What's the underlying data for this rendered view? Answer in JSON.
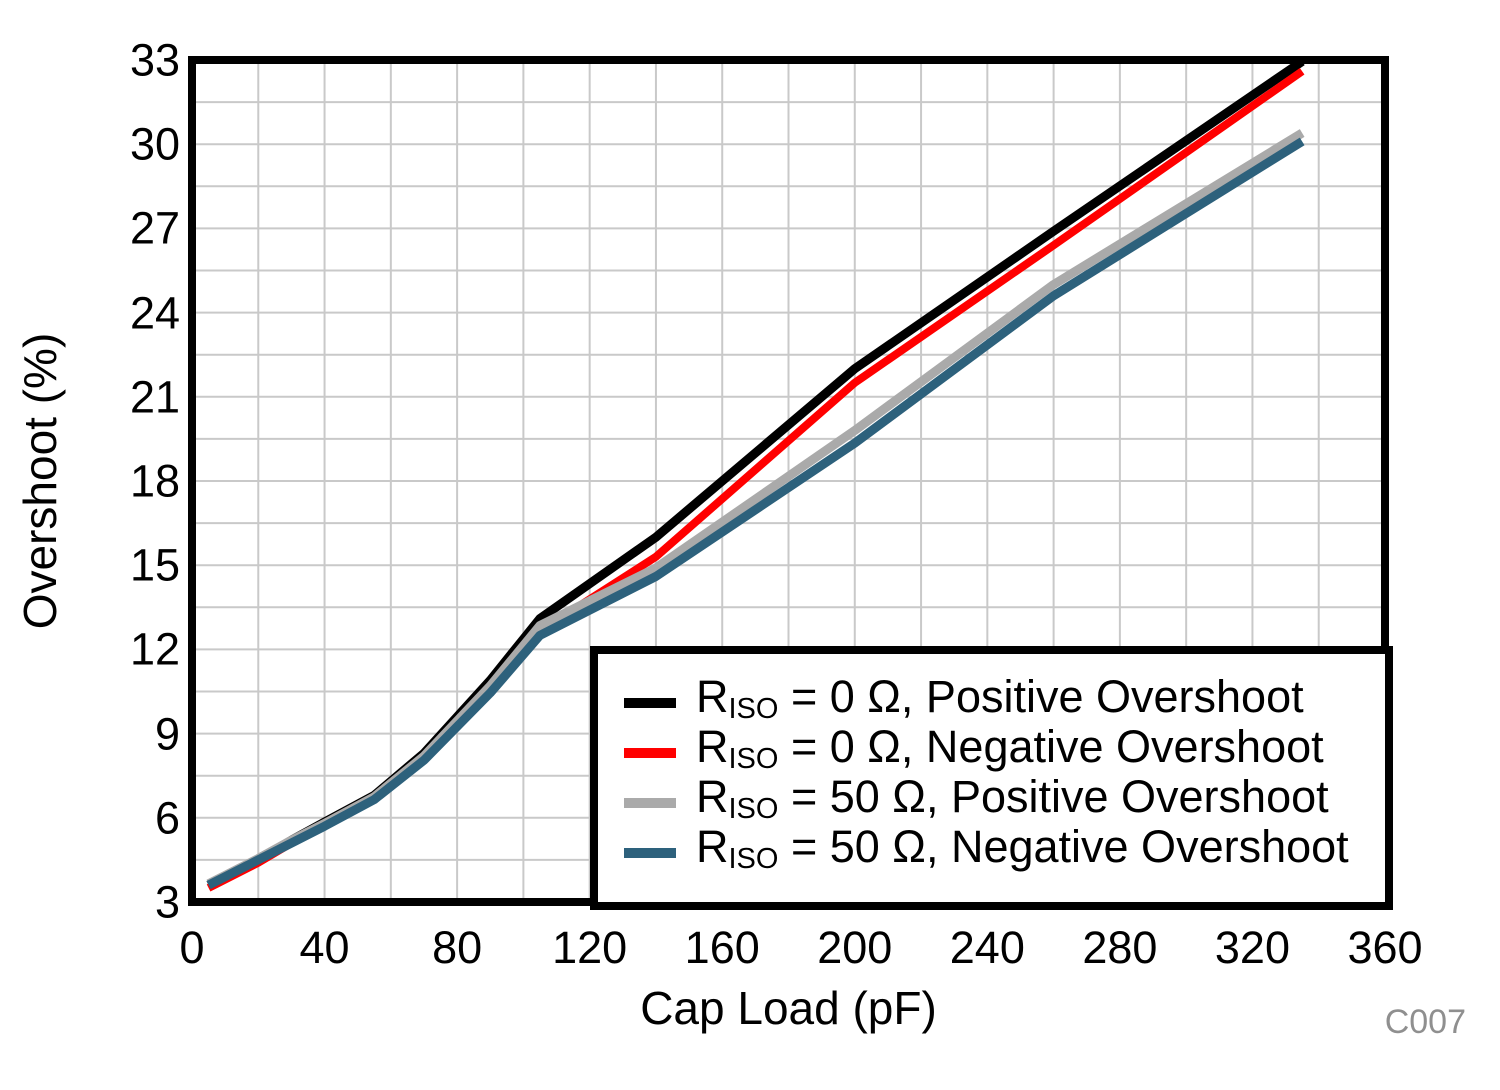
{
  "figure": {
    "code_label": "C007",
    "code_color": "#8F8F8F",
    "background": "#FFFFFF"
  },
  "chart_data": {
    "type": "line",
    "title": "",
    "xlabel": "Cap Load (pF)",
    "ylabel": "Overshoot (%)",
    "xlim": [
      0,
      360
    ],
    "ylim": [
      3,
      33
    ],
    "x_tick_labels": [
      0,
      40,
      80,
      120,
      160,
      200,
      240,
      280,
      320,
      360
    ],
    "y_tick_labels": [
      3,
      6,
      9,
      12,
      15,
      18,
      21,
      24,
      27,
      30,
      33
    ],
    "x_minor_step": 20,
    "y_minor_step": 1.5,
    "grid": true,
    "grid_color": "#C9C9C9",
    "border_color": "#000000",
    "legend_position": "lower right",
    "x": [
      5,
      10,
      20,
      30,
      40,
      55,
      70,
      90,
      105,
      140,
      200,
      260,
      335
    ],
    "series": [
      {
        "name": "RISO = 0 Ω, Positive Overshoot",
        "label_base": "R",
        "label_sub": "ISO",
        "label_rest": " = 0 Ω, Positive Overshoot",
        "color": "#000000",
        "line_width": 9,
        "values": [
          3.6,
          3.9,
          4.5,
          5.2,
          5.85,
          6.8,
          8.3,
          10.9,
          13.1,
          16.0,
          22.0,
          26.9,
          32.95
        ]
      },
      {
        "name": "RISO = 0 Ω, Negative Overshoot",
        "label_base": "R",
        "label_sub": "ISO",
        "label_rest": " = 0 Ω, Negative Overshoot",
        "color": "#FF0000",
        "line_width": 8,
        "values": [
          3.5,
          3.8,
          4.4,
          5.1,
          5.7,
          6.7,
          8.15,
          10.6,
          12.65,
          15.3,
          21.5,
          26.4,
          32.6
        ]
      },
      {
        "name": "RISO = 50 Ω, Positive Overshoot",
        "label_base": "R",
        "label_sub": "ISO",
        "label_rest": " = 50 Ω, Positive Overshoot",
        "color": "#AAAAAA",
        "line_width": 9,
        "values": [
          3.65,
          3.95,
          4.55,
          5.2,
          5.8,
          6.75,
          8.2,
          10.7,
          12.85,
          14.9,
          19.8,
          25.0,
          30.4
        ]
      },
      {
        "name": "RISO = 50 Ω, Negative Overshoot",
        "label_base": "R",
        "label_sub": "ISO",
        "label_rest": " = 50 Ω, Negative Overshoot",
        "color": "#2D617C",
        "line_width": 9,
        "values": [
          3.6,
          3.9,
          4.5,
          5.1,
          5.7,
          6.65,
          8.05,
          10.45,
          12.5,
          14.6,
          19.35,
          24.6,
          30.1
        ]
      }
    ]
  }
}
